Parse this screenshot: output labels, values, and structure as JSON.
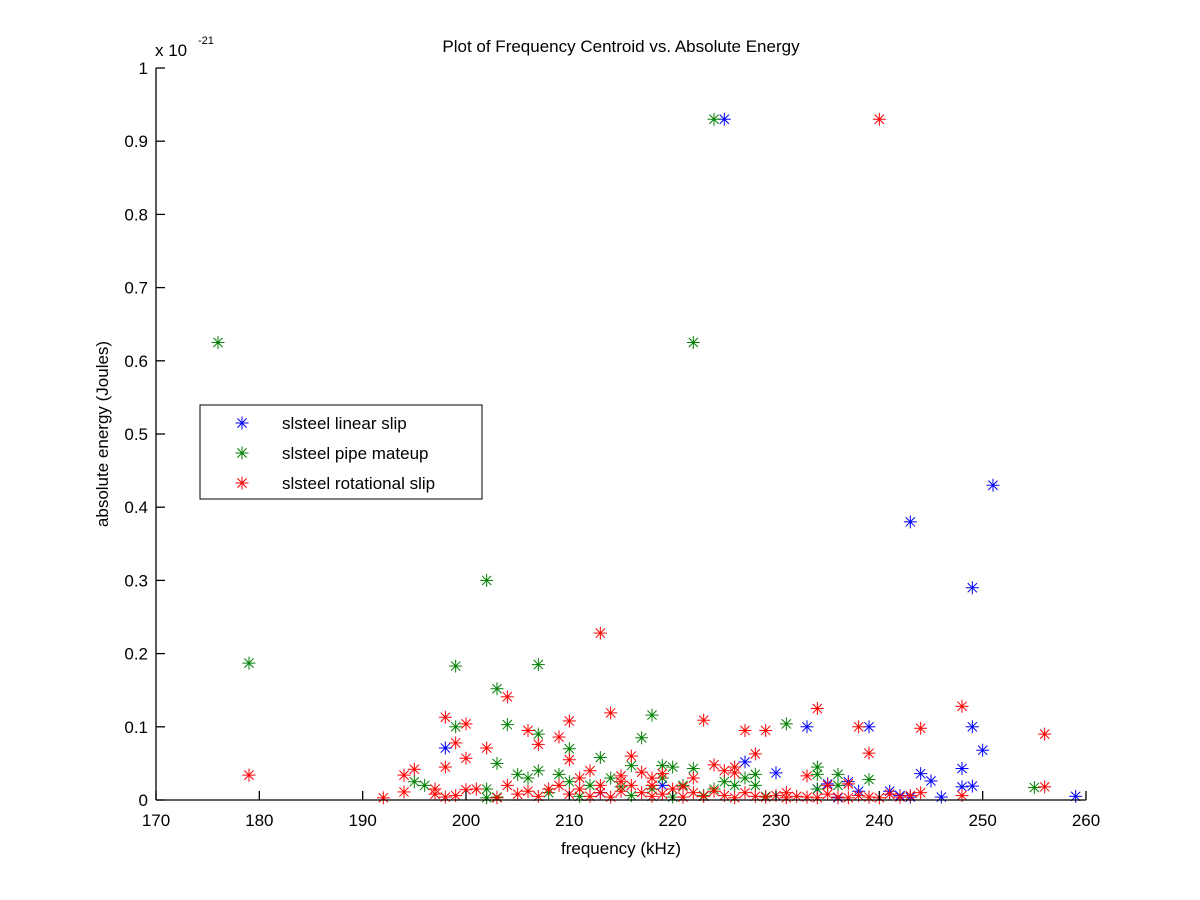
{
  "chart_data": {
    "type": "scatter",
    "title": "Plot of Frequency Centroid vs. Absolute Energy",
    "xlabel": "frequency (kHz)",
    "ylabel": "absolute energy (Joules)",
    "y_multiplier_label": "x 10",
    "y_multiplier_exponent": "-21",
    "xlim": [
      170,
      260
    ],
    "ylim": [
      0,
      1
    ],
    "x_ticks": [
      170,
      180,
      190,
      200,
      210,
      220,
      230,
      240,
      250,
      260
    ],
    "y_ticks": [
      0,
      0.1,
      0.2,
      0.3,
      0.4,
      0.5,
      0.6,
      0.7,
      0.8,
      0.9,
      1
    ],
    "y_tick_labels": [
      "0",
      "0.1",
      "0.2",
      "0.3",
      "0.4",
      "0.5",
      "0.6",
      "0.7",
      "0.8",
      "0.9",
      "1"
    ],
    "grid": false,
    "legend_position": "center-left",
    "marker": "asterisk",
    "series": [
      {
        "name": "slsteel linear slip",
        "color": "#0000ff",
        "points": [
          [
            198,
            0.071
          ],
          [
            225,
            0.93
          ],
          [
            251,
            0.43
          ],
          [
            243,
            0.38
          ],
          [
            249,
            0.29
          ],
          [
            233,
            0.1
          ],
          [
            239,
            0.1
          ],
          [
            249,
            0.1
          ],
          [
            250,
            0.068
          ],
          [
            248,
            0.043
          ],
          [
            244,
            0.036
          ],
          [
            245,
            0.026
          ],
          [
            237,
            0.025
          ],
          [
            235,
            0.022
          ],
          [
            230,
            0.037
          ],
          [
            227,
            0.052
          ],
          [
            238,
            0.012
          ],
          [
            241,
            0.012
          ],
          [
            246,
            0.004
          ],
          [
            248,
            0.018
          ],
          [
            249,
            0.019
          ],
          [
            259,
            0.005
          ],
          [
            234,
            0.015
          ],
          [
            219,
            0.02
          ],
          [
            213,
            0.01
          ],
          [
            243,
            0.004
          ],
          [
            236,
            0.003
          ],
          [
            242,
            0.006
          ]
        ]
      },
      {
        "name": "slsteel pipe mateup",
        "color": "#008000",
        "points": [
          [
            176,
            0.625
          ],
          [
            179,
            0.187
          ],
          [
            224,
            0.93
          ],
          [
            222,
            0.625
          ],
          [
            202,
            0.3
          ],
          [
            199,
            0.183
          ],
          [
            207,
            0.185
          ],
          [
            203,
            0.152
          ],
          [
            218,
            0.116
          ],
          [
            199,
            0.1
          ],
          [
            204,
            0.103
          ],
          [
            231,
            0.104
          ],
          [
            207,
            0.09
          ],
          [
            217,
            0.085
          ],
          [
            210,
            0.07
          ],
          [
            213,
            0.058
          ],
          [
            219,
            0.047
          ],
          [
            220,
            0.045
          ],
          [
            222,
            0.043
          ],
          [
            216,
            0.047
          ],
          [
            203,
            0.05
          ],
          [
            195,
            0.025
          ],
          [
            196,
            0.02
          ],
          [
            202,
            0.015
          ],
          [
            202,
            0.003
          ],
          [
            205,
            0.035
          ],
          [
            206,
            0.03
          ],
          [
            207,
            0.04
          ],
          [
            209,
            0.035
          ],
          [
            210,
            0.025
          ],
          [
            212,
            0.02
          ],
          [
            214,
            0.03
          ],
          [
            215,
            0.018
          ],
          [
            218,
            0.015
          ],
          [
            219,
            0.03
          ],
          [
            221,
            0.02
          ],
          [
            224,
            0.015
          ],
          [
            225,
            0.025
          ],
          [
            226,
            0.02
          ],
          [
            227,
            0.03
          ],
          [
            228,
            0.035
          ],
          [
            228,
            0.02
          ],
          [
            234,
            0.045
          ],
          [
            234,
            0.035
          ],
          [
            236,
            0.035
          ],
          [
            239,
            0.028
          ],
          [
            234,
            0.015
          ],
          [
            236,
            0.02
          ],
          [
            255,
            0.017
          ],
          [
            203,
            0.004
          ],
          [
            208,
            0.01
          ],
          [
            211,
            0.005
          ],
          [
            216,
            0.006
          ],
          [
            220,
            0.004
          ],
          [
            223,
            0.006
          ],
          [
            229,
            0.005
          ]
        ]
      },
      {
        "name": "slsteel rotational slip",
        "color": "#ff0000",
        "points": [
          [
            179,
            0.034
          ],
          [
            240,
            0.93
          ],
          [
            213,
            0.228
          ],
          [
            204,
            0.141
          ],
          [
            214,
            0.119
          ],
          [
            198,
            0.113
          ],
          [
            200,
            0.104
          ],
          [
            210,
            0.108
          ],
          [
            223,
            0.109
          ],
          [
            234,
            0.125
          ],
          [
            248,
            0.128
          ],
          [
            227,
            0.095
          ],
          [
            229,
            0.095
          ],
          [
            238,
            0.1
          ],
          [
            244,
            0.098
          ],
          [
            256,
            0.09
          ],
          [
            209,
            0.086
          ],
          [
            202,
            0.071
          ],
          [
            206,
            0.095
          ],
          [
            199,
            0.078
          ],
          [
            207,
            0.076
          ],
          [
            216,
            0.06
          ],
          [
            210,
            0.055
          ],
          [
            200,
            0.057
          ],
          [
            228,
            0.063
          ],
          [
            239,
            0.064
          ],
          [
            198,
            0.045
          ],
          [
            195,
            0.042
          ],
          [
            194,
            0.034
          ],
          [
            212,
            0.04
          ],
          [
            215,
            0.033
          ],
          [
            217,
            0.038
          ],
          [
            219,
            0.036
          ],
          [
            222,
            0.03
          ],
          [
            226,
            0.045
          ],
          [
            226,
            0.037
          ],
          [
            233,
            0.033
          ],
          [
            235,
            0.02
          ],
          [
            237,
            0.022
          ],
          [
            248,
            0.006
          ],
          [
            256,
            0.018
          ],
          [
            194,
            0.011
          ],
          [
            192,
            0.003
          ],
          [
            197,
            0.015
          ],
          [
            197,
            0.008
          ],
          [
            198,
            0.004
          ],
          [
            199,
            0.006
          ],
          [
            200,
            0.014
          ],
          [
            201,
            0.015
          ],
          [
            203,
            0.003
          ],
          [
            204,
            0.02
          ],
          [
            205,
            0.008
          ],
          [
            206,
            0.012
          ],
          [
            207,
            0.005
          ],
          [
            208,
            0.015
          ],
          [
            209,
            0.02
          ],
          [
            210,
            0.008
          ],
          [
            211,
            0.015
          ],
          [
            212,
            0.005
          ],
          [
            213,
            0.02
          ],
          [
            213,
            0.01
          ],
          [
            214,
            0.004
          ],
          [
            215,
            0.012
          ],
          [
            216,
            0.02
          ],
          [
            217,
            0.01
          ],
          [
            218,
            0.005
          ],
          [
            218,
            0.02
          ],
          [
            219,
            0.008
          ],
          [
            220,
            0.015
          ],
          [
            221,
            0.004
          ],
          [
            222,
            0.01
          ],
          [
            223,
            0.005
          ],
          [
            224,
            0.012
          ],
          [
            225,
            0.006
          ],
          [
            226,
            0.003
          ],
          [
            227,
            0.01
          ],
          [
            228,
            0.005
          ],
          [
            229,
            0.004
          ],
          [
            230,
            0.006
          ],
          [
            231,
            0.003
          ],
          [
            232,
            0.005
          ],
          [
            233,
            0.004
          ],
          [
            234,
            0.003
          ],
          [
            235,
            0.008
          ],
          [
            236,
            0.004
          ],
          [
            237,
            0.003
          ],
          [
            238,
            0.006
          ],
          [
            239,
            0.004
          ],
          [
            240,
            0.003
          ],
          [
            241,
            0.008
          ],
          [
            242,
            0.004
          ],
          [
            243,
            0.006
          ],
          [
            244,
            0.01
          ],
          [
            224,
            0.048
          ],
          [
            225,
            0.04
          ],
          [
            211,
            0.03
          ],
          [
            215,
            0.025
          ],
          [
            218,
            0.03
          ],
          [
            231,
            0.01
          ],
          [
            221,
            0.018
          ]
        ]
      }
    ]
  }
}
